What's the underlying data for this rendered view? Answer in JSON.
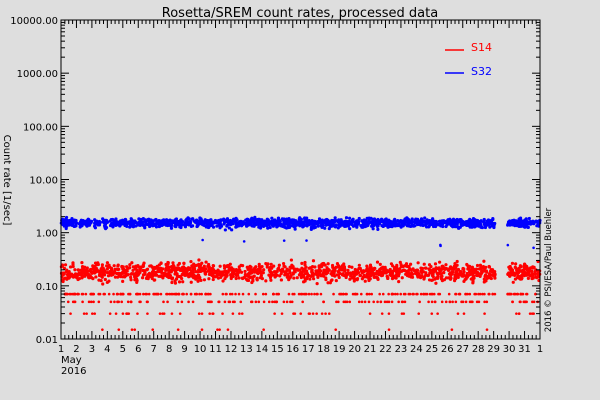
{
  "chart_data": {
    "type": "scatter",
    "title": "Rosetta/SREM count rates, processed data",
    "ylabel": "Count rate [1/sec]",
    "yscale": "log",
    "ylim": [
      0.01,
      10000
    ],
    "ytick_values": [
      0.01,
      0.1,
      1,
      10,
      100,
      1000,
      10000
    ],
    "ytick_labels": [
      "0.01",
      "0.10",
      "1.00",
      "10.00",
      "100.00",
      "1000.00",
      "10000.00"
    ],
    "xlim": [
      1,
      32
    ],
    "xtick_values": [
      1,
      2,
      3,
      4,
      5,
      6,
      7,
      8,
      9,
      10,
      11,
      12,
      13,
      14,
      15,
      16,
      17,
      18,
      19,
      20,
      21,
      22,
      23,
      24,
      25,
      26,
      27,
      28,
      29,
      30,
      31,
      32
    ],
    "xtick_labels": [
      "1",
      "2",
      "3",
      "4",
      "5",
      "6",
      "7",
      "8",
      "9",
      "10",
      "11",
      "12",
      "13",
      "14",
      "15",
      "16",
      "17",
      "18",
      "19",
      "20",
      "21",
      "22",
      "23",
      "24",
      "25",
      "26",
      "27",
      "28",
      "29",
      "30",
      "31",
      "1"
    ],
    "xlabel_month": "May",
    "xlabel_year": "2016",
    "data_gap": [
      29.1,
      29.9
    ],
    "grid": false,
    "legend_placement": "top-right",
    "copyright": "2016 © PSI/ESA/Paul Buehler",
    "series": [
      {
        "name": "S14",
        "color": "#ff0000",
        "y_median": 0.18,
        "y_band": [
          0.1,
          0.32
        ],
        "y_floor_levels": [
          0.07,
          0.05,
          0.03,
          0.015
        ]
      },
      {
        "name": "S32",
        "color": "#0000ff",
        "y_median": 1.55,
        "y_band": [
          1.1,
          2.0
        ],
        "y_dips": [
          0.7,
          0.55
        ]
      }
    ]
  }
}
